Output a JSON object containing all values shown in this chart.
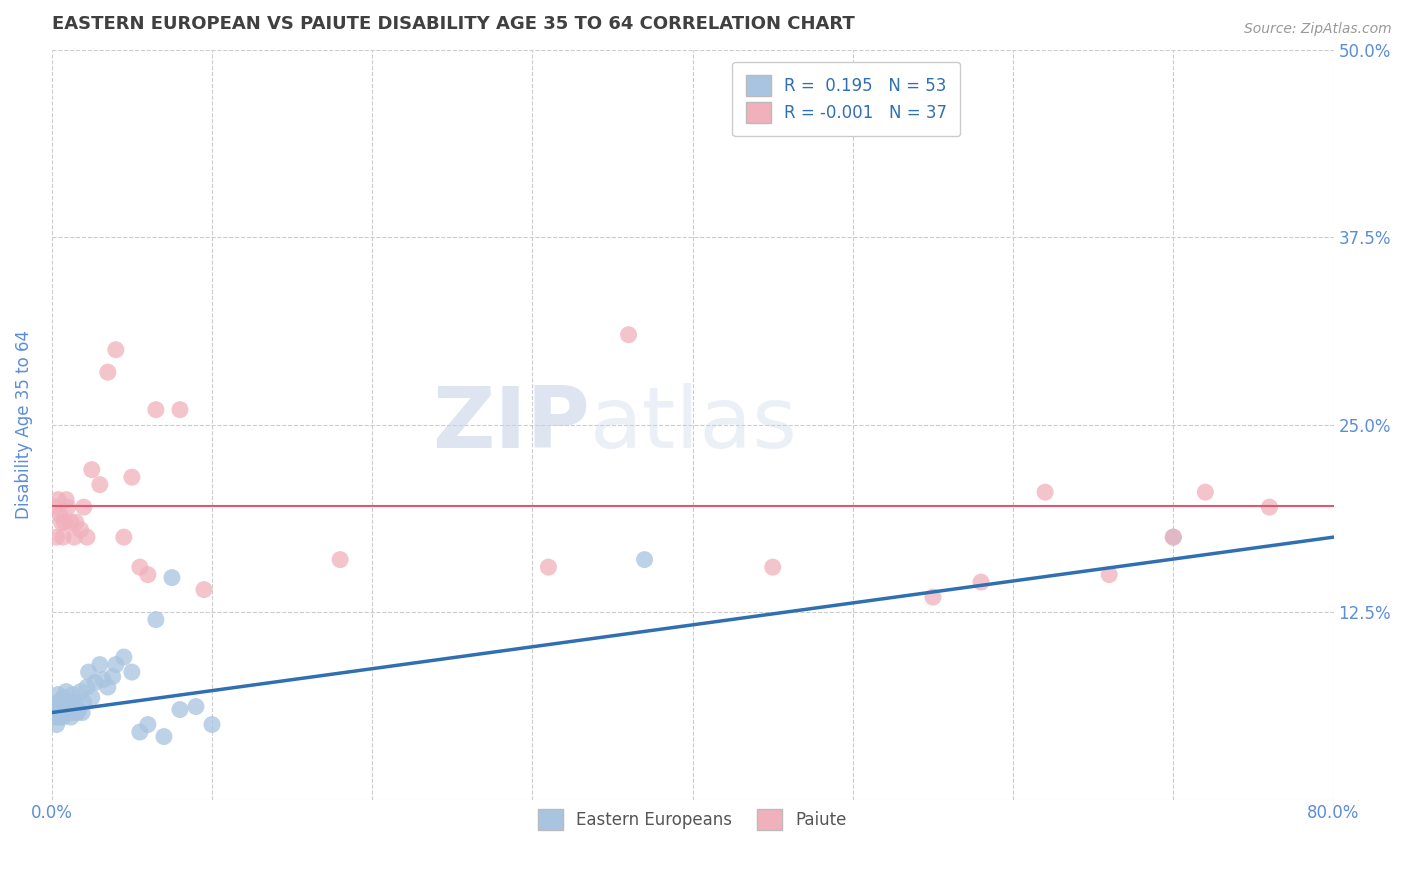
{
  "title": "EASTERN EUROPEAN VS PAIUTE DISABILITY AGE 35 TO 64 CORRELATION CHART",
  "source": "Source: ZipAtlas.com",
  "ylabel": "Disability Age 35 to 64",
  "xlim": [
    0.0,
    0.8
  ],
  "ylim": [
    0.0,
    0.5
  ],
  "xticks": [
    0.0,
    0.1,
    0.2,
    0.3,
    0.4,
    0.5,
    0.6,
    0.7,
    0.8
  ],
  "xticklabels": [
    "0.0%",
    "",
    "",
    "",
    "",
    "",
    "",
    "",
    "80.0%"
  ],
  "ytick_positions": [
    0.0,
    0.125,
    0.25,
    0.375,
    0.5
  ],
  "ytick_labels": [
    "",
    "12.5%",
    "25.0%",
    "37.5%",
    "50.0%"
  ],
  "blue_r": 0.195,
  "blue_n": 53,
  "pink_r": -0.001,
  "pink_n": 37,
  "blue_color": "#a8c4e0",
  "pink_color": "#f0b0bc",
  "blue_line_color": "#3070b0",
  "pink_line_color": "#e05870",
  "legend_text_color": "#3070b0",
  "legend_label_blue": "Eastern Europeans",
  "legend_label_pink": "Paiute",
  "background_color": "#ffffff",
  "grid_color": "#cccccc",
  "title_color": "#404040",
  "axis_label_color": "#5b8dd9",
  "tick_label_color": "#5b8dd9",
  "blue_x": [
    0.002,
    0.003,
    0.003,
    0.004,
    0.004,
    0.004,
    0.005,
    0.005,
    0.005,
    0.006,
    0.006,
    0.007,
    0.007,
    0.007,
    0.008,
    0.008,
    0.009,
    0.009,
    0.01,
    0.01,
    0.011,
    0.012,
    0.012,
    0.013,
    0.013,
    0.014,
    0.015,
    0.016,
    0.017,
    0.018,
    0.019,
    0.02,
    0.022,
    0.023,
    0.025,
    0.027,
    0.03,
    0.032,
    0.035,
    0.038,
    0.04,
    0.045,
    0.05,
    0.055,
    0.06,
    0.065,
    0.07,
    0.075,
    0.08,
    0.09,
    0.1,
    0.37,
    0.7
  ],
  "blue_y": [
    0.055,
    0.05,
    0.06,
    0.055,
    0.065,
    0.07,
    0.06,
    0.065,
    0.055,
    0.06,
    0.058,
    0.062,
    0.068,
    0.055,
    0.06,
    0.065,
    0.058,
    0.072,
    0.06,
    0.058,
    0.062,
    0.055,
    0.065,
    0.058,
    0.07,
    0.06,
    0.065,
    0.058,
    0.06,
    0.072,
    0.058,
    0.065,
    0.075,
    0.085,
    0.068,
    0.078,
    0.09,
    0.08,
    0.075,
    0.082,
    0.09,
    0.095,
    0.085,
    0.045,
    0.05,
    0.12,
    0.042,
    0.148,
    0.06,
    0.062,
    0.05,
    0.16,
    0.175
  ],
  "pink_x": [
    0.002,
    0.003,
    0.004,
    0.005,
    0.006,
    0.007,
    0.008,
    0.009,
    0.01,
    0.012,
    0.014,
    0.015,
    0.018,
    0.02,
    0.022,
    0.025,
    0.03,
    0.035,
    0.04,
    0.045,
    0.05,
    0.055,
    0.06,
    0.065,
    0.08,
    0.095,
    0.18,
    0.31,
    0.36,
    0.45,
    0.55,
    0.58,
    0.62,
    0.66,
    0.7,
    0.72,
    0.76
  ],
  "pink_y": [
    0.195,
    0.175,
    0.2,
    0.19,
    0.185,
    0.175,
    0.185,
    0.2,
    0.195,
    0.185,
    0.175,
    0.185,
    0.18,
    0.195,
    0.175,
    0.22,
    0.21,
    0.285,
    0.3,
    0.175,
    0.215,
    0.155,
    0.15,
    0.26,
    0.26,
    0.14,
    0.16,
    0.155,
    0.31,
    0.155,
    0.135,
    0.145,
    0.205,
    0.15,
    0.175,
    0.205,
    0.195
  ],
  "blue_trendline_x": [
    0.0,
    0.8
  ],
  "blue_trendline_y": [
    0.058,
    0.175
  ],
  "pink_trendline_x": [
    0.0,
    0.8
  ],
  "pink_trendline_y": [
    0.196,
    0.196
  ]
}
